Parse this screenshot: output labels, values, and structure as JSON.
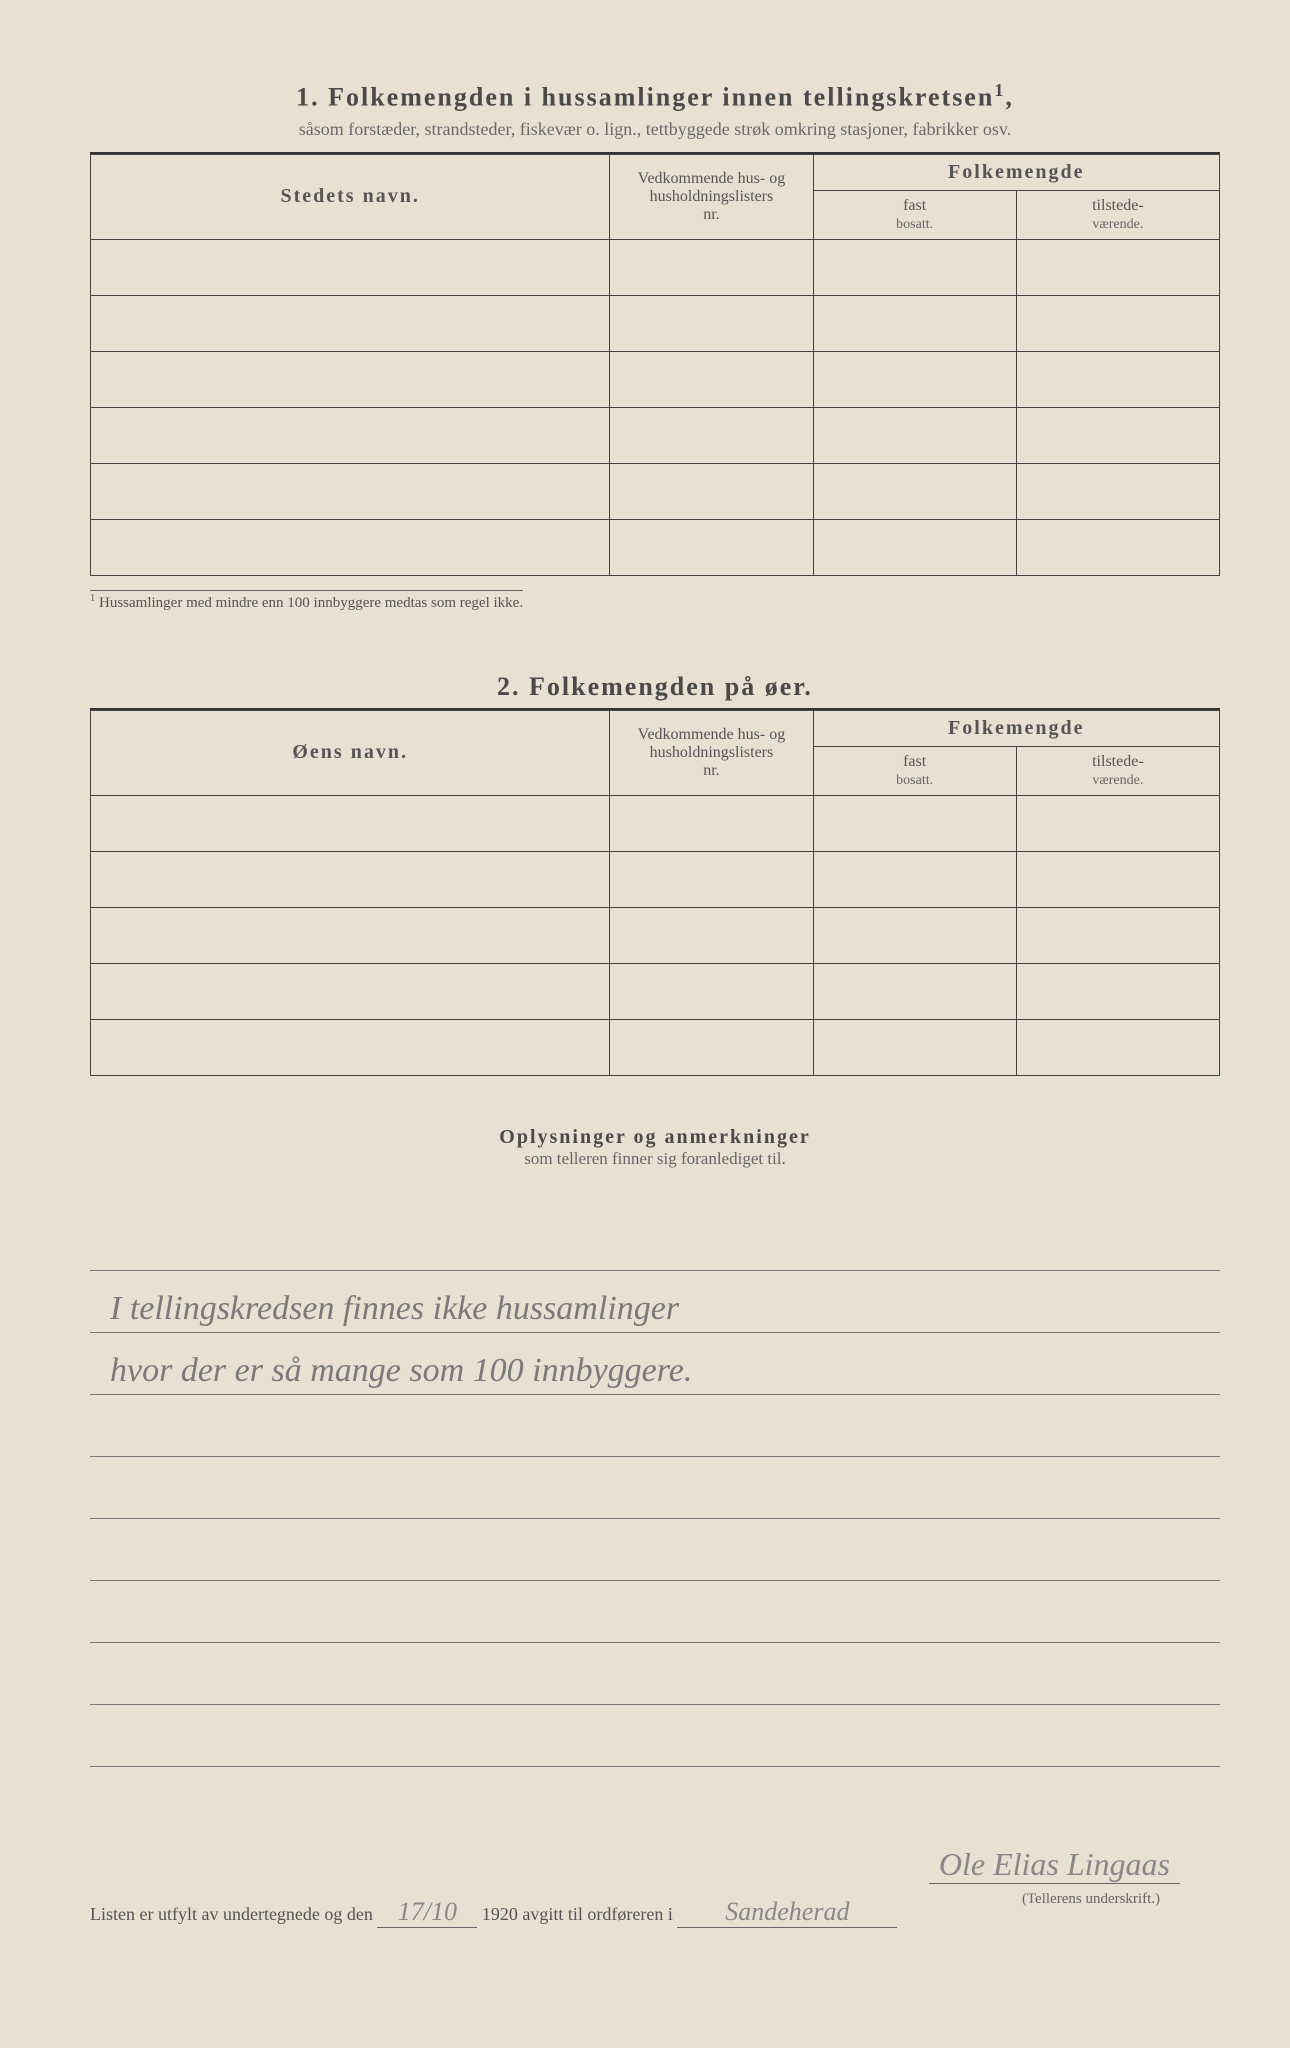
{
  "section1": {
    "number": "1.",
    "title": "Folkemengden i hussamlinger innen tellingskretsen",
    "title_sup": "1",
    "subtitle": "såsom forstæder, strandsteder, fiskevær o. lign., tettbyggede strøk omkring stasjoner, fabrikker osv.",
    "columns": {
      "name": "Stedets navn.",
      "nr_line1": "Vedkommende hus- og",
      "nr_line2": "husholdningslisters",
      "nr_line3": "nr.",
      "pop": "Folkemengde",
      "fast1": "fast",
      "fast2": "bosatt.",
      "til1": "tilstede-",
      "til2": "værende."
    },
    "footnote_marker": "1",
    "footnote": "Hussamlinger med mindre enn 100 innbyggere medtas som regel ikke."
  },
  "section2": {
    "number": "2.",
    "title": "Folkemengden på øer.",
    "columns": {
      "name": "Øens navn.",
      "nr_line1": "Vedkommende hus- og",
      "nr_line2": "husholdningslisters",
      "nr_line3": "nr.",
      "pop": "Folkemengde",
      "fast1": "fast",
      "fast2": "bosatt.",
      "til1": "tilstede-",
      "til2": "værende."
    }
  },
  "notes": {
    "heading": "Oplysninger og anmerkninger",
    "sub": "som telleren finner sig foranlediget til.",
    "line1": "I tellingskredsen finnes ikke hussamlinger",
    "line2": "hvor der er så mange som 100 innbyggere."
  },
  "footer": {
    "prefix": "Listen er utfylt av undertegnede og den",
    "date": "17/10",
    "year": "1920",
    "mid": "avgitt til ordføreren i",
    "place": "Sandeherad",
    "signature": "Ole Elias Lingaas",
    "sig_label": "(Tellerens underskrift.)"
  },
  "layout": {
    "section1_rows": 6,
    "section2_rows": 5,
    "note_lines": 9
  },
  "colors": {
    "paper": "#e8e0d0",
    "ink": "#4a4a4a",
    "faint": "#6a6a6a",
    "handwriting": "#7a7a7a"
  }
}
